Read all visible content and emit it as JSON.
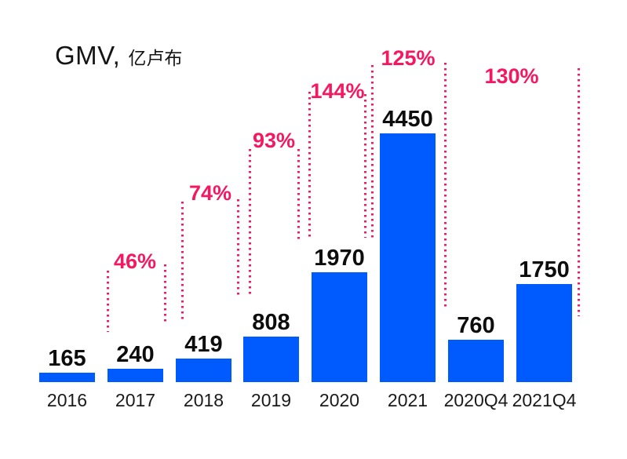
{
  "title": {
    "main": "GMV,",
    "unit": "亿卢布"
  },
  "colors": {
    "bar_blue": "#005BFF",
    "accent_pink": "#F5175F",
    "text_dark": "#0d0d0d"
  },
  "chart_data": {
    "type": "bar",
    "title": "GMV, 亿卢布",
    "categories": [
      "2016",
      "2017",
      "2018",
      "2019",
      "2020",
      "2021",
      "2020Q4",
      "2021Q4"
    ],
    "values": [
      165,
      240,
      419,
      808,
      1970,
      4450,
      760,
      1750
    ],
    "value_labels": [
      "165",
      "240",
      "419",
      "808",
      "1970",
      "4450",
      "760",
      "1750"
    ],
    "growth": [
      {
        "label": "46%",
        "from": "2016",
        "to": "2017"
      },
      {
        "label": "74%",
        "from": "2017",
        "to": "2018"
      },
      {
        "label": "93%",
        "from": "2018",
        "to": "2019"
      },
      {
        "label": "144%",
        "from": "2019",
        "to": "2020"
      },
      {
        "label": "125%",
        "from": "2020",
        "to": "2021"
      },
      {
        "label": "130%",
        "from": "2020Q4",
        "to": "2021Q4"
      }
    ],
    "xlabel": "",
    "ylabel": "GMV, 亿卢布",
    "ylim": [
      0,
      4450
    ],
    "grid": false,
    "legend": false,
    "annotation_style": "pink dotted vertical guide lines flanking each growth percentage"
  }
}
